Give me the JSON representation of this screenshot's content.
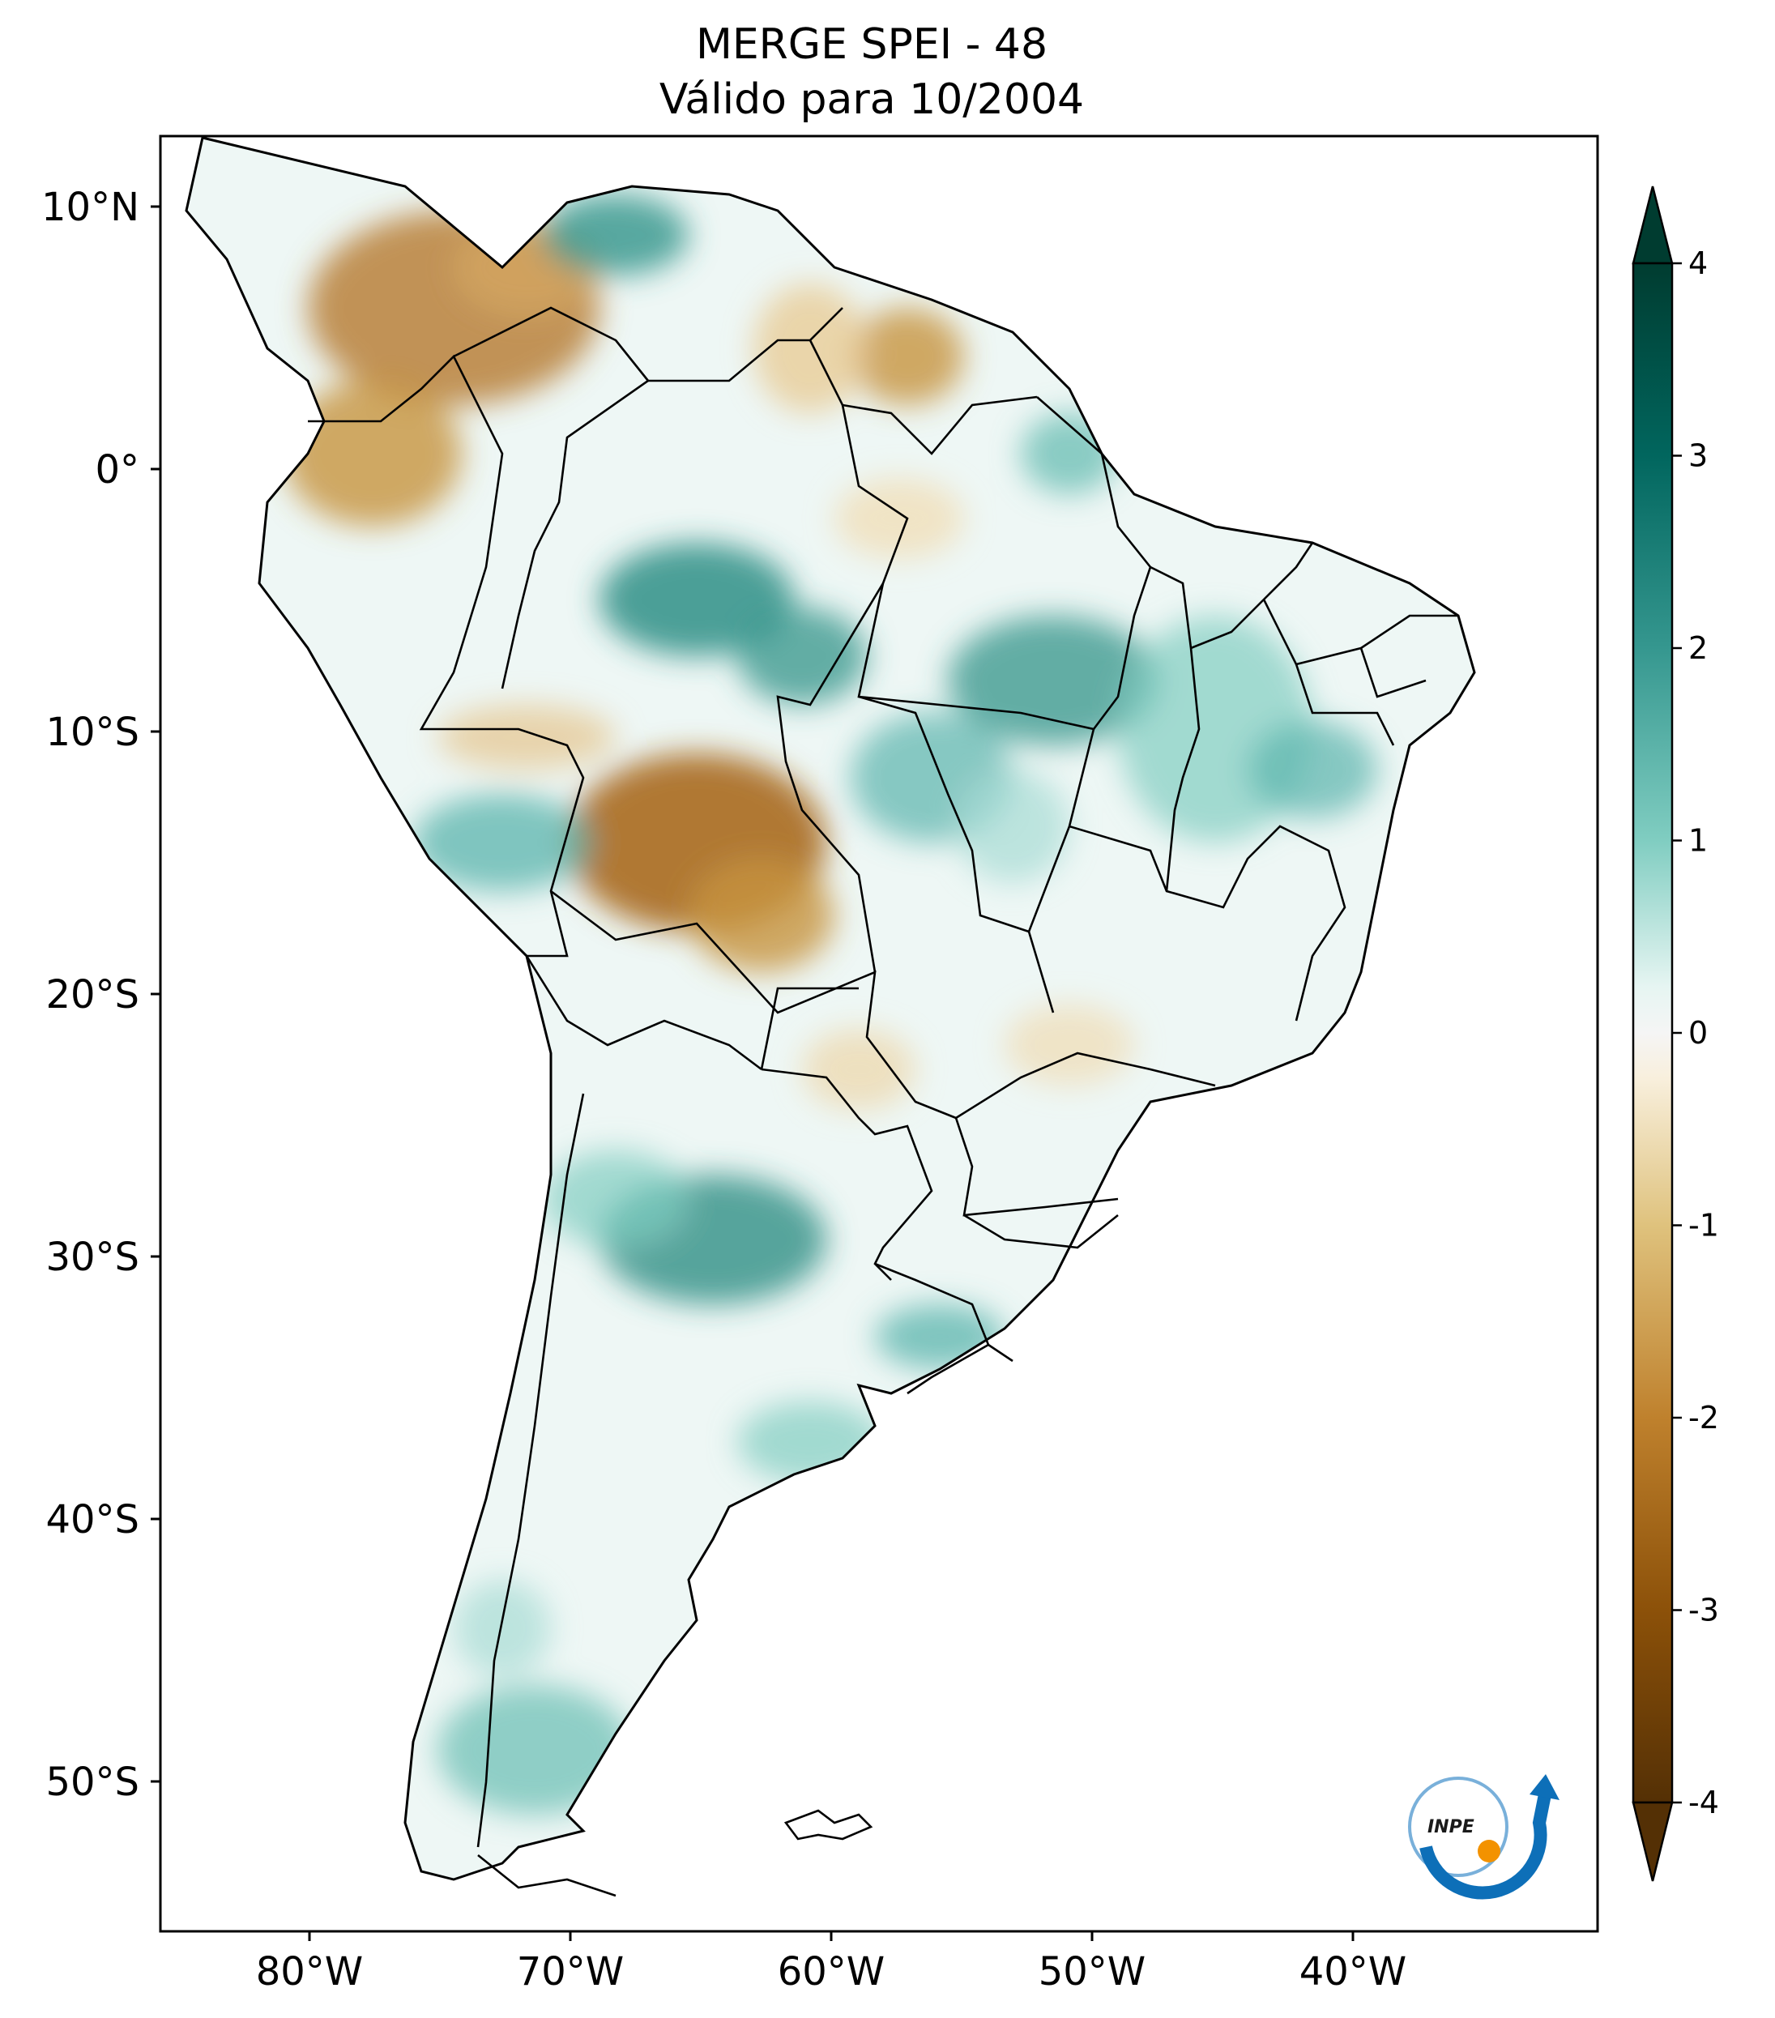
{
  "title": {
    "line1": "MERGE   SPEI - 48",
    "line2": "Válido para 10/2004"
  },
  "axes": {
    "lat_ticks": [
      "10°N",
      "0°",
      "10°S",
      "20°S",
      "30°S",
      "40°S",
      "50°S"
    ],
    "lon_ticks": [
      "80°W",
      "70°W",
      "60°W",
      "50°W",
      "40°W"
    ]
  },
  "colorbar": {
    "ticks": [
      "4",
      "3",
      "2",
      "1",
      "0",
      "-1",
      "-2",
      "-3",
      "-4"
    ],
    "range": [
      -4,
      4
    ],
    "extend": "both",
    "colormap": "BrBG",
    "colors": {
      "dry_extreme": "#543005",
      "dry_strong": "#8c5109",
      "dry_moderate": "#c7933f",
      "dry_mild": "#f6e8c3",
      "neutral": "#f5f5f5",
      "wet_mild": "#c7eae5",
      "wet_moderate": "#5ab4ac",
      "wet_strong": "#01665e",
      "wet_extreme": "#003c30"
    }
  },
  "logo": {
    "text": "INPE"
  }
}
